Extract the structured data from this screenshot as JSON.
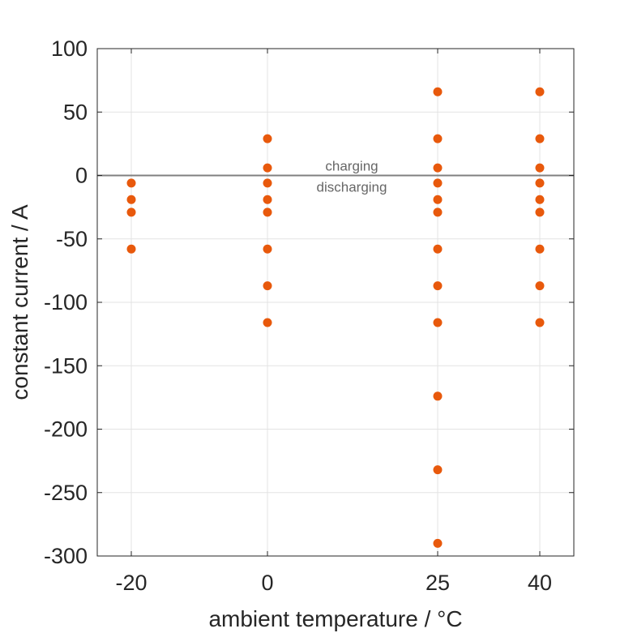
{
  "chart_data": {
    "type": "scatter",
    "xlabel": "ambient temperature / °C",
    "ylabel": "constant current / A",
    "x_categories": [
      -20,
      0,
      25,
      40
    ],
    "x_tick_labels": [
      "-20",
      "0",
      "25",
      "40"
    ],
    "xlim": [
      -25,
      45
    ],
    "ylim": [
      -300,
      100
    ],
    "y_ticks": [
      100,
      50,
      0,
      -50,
      -100,
      -150,
      -200,
      -250,
      -300
    ],
    "y_tick_labels": [
      "100",
      "50",
      "0",
      "-50",
      "-100",
      "-150",
      "-200",
      "-250",
      "-300"
    ],
    "grid": true,
    "point_color": "#e8590c",
    "zero_line_color": "#808080",
    "annotations": [
      "charging",
      "discharging"
    ],
    "points": [
      {
        "x": -20,
        "y": -6
      },
      {
        "x": -20,
        "y": -19
      },
      {
        "x": -20,
        "y": -29
      },
      {
        "x": -20,
        "y": -58
      },
      {
        "x": 0,
        "y": 29
      },
      {
        "x": 0,
        "y": 6
      },
      {
        "x": 0,
        "y": -6
      },
      {
        "x": 0,
        "y": -19
      },
      {
        "x": 0,
        "y": -29
      },
      {
        "x": 0,
        "y": -58
      },
      {
        "x": 0,
        "y": -87
      },
      {
        "x": 0,
        "y": -116
      },
      {
        "x": 25,
        "y": 66
      },
      {
        "x": 25,
        "y": 29
      },
      {
        "x": 25,
        "y": 6
      },
      {
        "x": 25,
        "y": -6
      },
      {
        "x": 25,
        "y": -19
      },
      {
        "x": 25,
        "y": -29
      },
      {
        "x": 25,
        "y": -58
      },
      {
        "x": 25,
        "y": -87
      },
      {
        "x": 25,
        "y": -116
      },
      {
        "x": 25,
        "y": -174
      },
      {
        "x": 25,
        "y": -232
      },
      {
        "x": 25,
        "y": -290
      },
      {
        "x": 40,
        "y": 66
      },
      {
        "x": 40,
        "y": 29
      },
      {
        "x": 40,
        "y": 6
      },
      {
        "x": 40,
        "y": -6
      },
      {
        "x": 40,
        "y": -19
      },
      {
        "x": 40,
        "y": -29
      },
      {
        "x": 40,
        "y": -58
      },
      {
        "x": 40,
        "y": -87
      },
      {
        "x": 40,
        "y": -116
      }
    ]
  }
}
